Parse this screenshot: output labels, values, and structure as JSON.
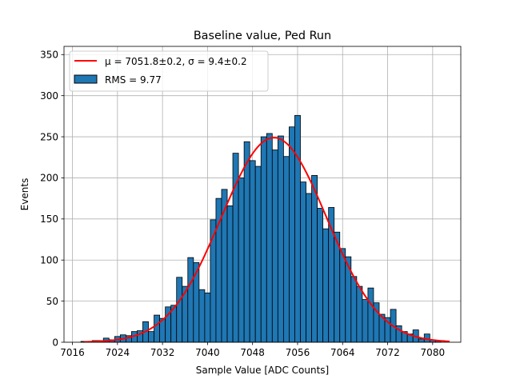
{
  "chart_data": {
    "type": "bar",
    "title": "Baseline value, Ped Run",
    "xlabel": "Sample Value [ADC Counts]",
    "ylabel": "Events",
    "xlim": [
      7014.5,
      7085.0
    ],
    "ylim": [
      0,
      360
    ],
    "xticks": [
      "7016",
      "7024",
      "7032",
      "7040",
      "7048",
      "7056",
      "7064",
      "7072",
      "7080"
    ],
    "yticks": [
      "0",
      "50",
      "100",
      "150",
      "200",
      "250",
      "300",
      "350"
    ],
    "grid": true,
    "legend_position": "top-left",
    "bin_width": 1,
    "bins": [
      {
        "x": 7018,
        "count": 1
      },
      {
        "x": 7019,
        "count": 1
      },
      {
        "x": 7020,
        "count": 2
      },
      {
        "x": 7021,
        "count": 2
      },
      {
        "x": 7022,
        "count": 5
      },
      {
        "x": 7023,
        "count": 3
      },
      {
        "x": 7024,
        "count": 7
      },
      {
        "x": 7025,
        "count": 9
      },
      {
        "x": 7026,
        "count": 8
      },
      {
        "x": 7027,
        "count": 13
      },
      {
        "x": 7028,
        "count": 14
      },
      {
        "x": 7029,
        "count": 25
      },
      {
        "x": 7030,
        "count": 13
      },
      {
        "x": 7031,
        "count": 33
      },
      {
        "x": 7032,
        "count": 29
      },
      {
        "x": 7033,
        "count": 43
      },
      {
        "x": 7034,
        "count": 45
      },
      {
        "x": 7035,
        "count": 79
      },
      {
        "x": 7036,
        "count": 68
      },
      {
        "x": 7037,
        "count": 103
      },
      {
        "x": 7038,
        "count": 97
      },
      {
        "x": 7039,
        "count": 64
      },
      {
        "x": 7040,
        "count": 60
      },
      {
        "x": 7041,
        "count": 149
      },
      {
        "x": 7042,
        "count": 175
      },
      {
        "x": 7043,
        "count": 186
      },
      {
        "x": 7044,
        "count": 166
      },
      {
        "x": 7045,
        "count": 230
      },
      {
        "x": 7046,
        "count": 200
      },
      {
        "x": 7047,
        "count": 244
      },
      {
        "x": 7048,
        "count": 221
      },
      {
        "x": 7049,
        "count": 214
      },
      {
        "x": 7050,
        "count": 250
      },
      {
        "x": 7051,
        "count": 254
      },
      {
        "x": 7052,
        "count": 234
      },
      {
        "x": 7053,
        "count": 251
      },
      {
        "x": 7054,
        "count": 226
      },
      {
        "x": 7055,
        "count": 262
      },
      {
        "x": 7056,
        "count": 276
      },
      {
        "x": 7057,
        "count": 195
      },
      {
        "x": 7058,
        "count": 181
      },
      {
        "x": 7059,
        "count": 203
      },
      {
        "x": 7060,
        "count": 163
      },
      {
        "x": 7061,
        "count": 138
      },
      {
        "x": 7062,
        "count": 164
      },
      {
        "x": 7063,
        "count": 134
      },
      {
        "x": 7064,
        "count": 114
      },
      {
        "x": 7065,
        "count": 104
      },
      {
        "x": 7066,
        "count": 80
      },
      {
        "x": 7067,
        "count": 68
      },
      {
        "x": 7068,
        "count": 52
      },
      {
        "x": 7069,
        "count": 66
      },
      {
        "x": 7070,
        "count": 48
      },
      {
        "x": 7071,
        "count": 34
      },
      {
        "x": 7072,
        "count": 30
      },
      {
        "x": 7073,
        "count": 40
      },
      {
        "x": 7074,
        "count": 20
      },
      {
        "x": 7075,
        "count": 13
      },
      {
        "x": 7076,
        "count": 10
      },
      {
        "x": 7077,
        "count": 15
      },
      {
        "x": 7078,
        "count": 4
      },
      {
        "x": 7079,
        "count": 10
      },
      {
        "x": 7080,
        "count": 3
      },
      {
        "x": 7081,
        "count": 2
      }
    ],
    "fit": {
      "type": "gaussian",
      "mu": 7051.8,
      "sigma": 9.4,
      "amplitude": 249,
      "x_range": [
        7018,
        7083
      ]
    },
    "series": [
      {
        "name": "μ = 7051.8±0.2, σ = 9.4±0.2",
        "kind": "line",
        "color": "#ff0000"
      },
      {
        "name": "RMS = 9.77",
        "kind": "bar",
        "color": "#1f77b4"
      }
    ]
  }
}
